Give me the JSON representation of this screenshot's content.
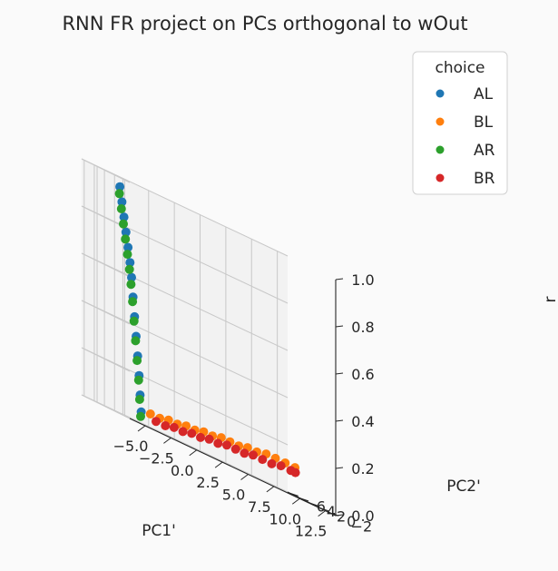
{
  "chart_data": {
    "type": "scatter",
    "projection": "3d",
    "title": "RNN FR project on PCs orthogonal to wOut",
    "xlabel": "PC1'",
    "ylabel": "PC2'",
    "zlabel": "r",
    "xlim": [
      -6.5,
      13.5
    ],
    "ylim": [
      -3.0,
      6.5
    ],
    "zlim": [
      0,
      1.0
    ],
    "x_ticks": [
      "−5.0",
      "−2.5",
      "0.0",
      "2.5",
      "5.0",
      "7.5",
      "10.0",
      "12.5"
    ],
    "y_ticks": [
      "−2",
      "0",
      "2",
      "4",
      "6"
    ],
    "z_ticks": [
      "0.0",
      "0.2",
      "0.4",
      "0.6",
      "0.8",
      "1.0"
    ],
    "grid": true,
    "legend": {
      "title": "choice",
      "position": "top-right",
      "entries": [
        {
          "label": "AL",
          "color": "#1f77b4"
        },
        {
          "label": "BL",
          "color": "#ff7f0e"
        },
        {
          "label": "AR",
          "color": "#2ca02c"
        },
        {
          "label": "BR",
          "color": "#d62728"
        }
      ]
    },
    "series": [
      {
        "name": "AL",
        "color": "#1f77b4",
        "x": [
          -5.0,
          -5.0,
          -5.0,
          -5.0,
          -5.0,
          -5.0,
          -5.0,
          -5.0,
          -5.0,
          -5.0,
          -5.0,
          -5.0,
          -5.0,
          -5.0
        ],
        "y": [
          -2.2,
          -2.0,
          -1.8,
          -1.5,
          -1.2,
          -0.9,
          -0.6,
          -0.3,
          0.0,
          0.4,
          0.8,
          1.2,
          1.6,
          2.0
        ],
        "z": [
          0.05,
          0.12,
          0.2,
          0.28,
          0.36,
          0.44,
          0.52,
          0.6,
          0.66,
          0.72,
          0.78,
          0.84,
          0.9,
          0.96
        ]
      },
      {
        "name": "BL",
        "color": "#ff7f0e",
        "x": [
          -4.0,
          -3.0,
          -2.0,
          -1.0,
          0.0,
          1.0,
          2.0,
          3.0,
          4.0,
          5.0,
          6.0,
          7.0,
          8.0,
          9.0,
          10.0,
          11.0,
          12.0
        ],
        "y": [
          -2.0,
          -1.8,
          -1.5,
          -1.2,
          -0.9,
          -0.6,
          -0.3,
          0.0,
          0.3,
          0.6,
          0.9,
          1.2,
          1.4,
          1.6,
          1.8,
          1.9,
          2.0
        ],
        "z": [
          0.06,
          0.06,
          0.07,
          0.07,
          0.08,
          0.08,
          0.09,
          0.09,
          0.1,
          0.1,
          0.1,
          0.11,
          0.11,
          0.12,
          0.12,
          0.12,
          0.12
        ]
      },
      {
        "name": "AR",
        "color": "#2ca02c",
        "x": [
          -5.1,
          -5.1,
          -5.1,
          -5.1,
          -5.1,
          -5.1,
          -5.1,
          -5.1,
          -5.1,
          -5.1,
          -5.1,
          -5.1,
          -5.1,
          -5.1
        ],
        "y": [
          -2.3,
          -2.1,
          -1.9,
          -1.6,
          -1.3,
          -1.0,
          -0.7,
          -0.4,
          -0.1,
          0.3,
          0.7,
          1.1,
          1.5,
          1.9
        ],
        "z": [
          0.03,
          0.1,
          0.18,
          0.26,
          0.34,
          0.42,
          0.5,
          0.57,
          0.63,
          0.69,
          0.75,
          0.81,
          0.87,
          0.93
        ]
      },
      {
        "name": "BR",
        "color": "#d62728",
        "x": [
          -3.5,
          -2.5,
          -1.5,
          -0.5,
          0.5,
          1.5,
          2.5,
          3.5,
          4.5,
          5.5,
          6.5,
          7.5,
          8.5,
          9.5,
          10.5,
          11.5,
          12.0
        ],
        "y": [
          -2.1,
          -1.9,
          -1.6,
          -1.3,
          -1.0,
          -0.7,
          -0.4,
          -0.1,
          0.2,
          0.5,
          0.8,
          1.1,
          1.3,
          1.5,
          1.7,
          1.8,
          1.9
        ],
        "z": [
          0.04,
          0.04,
          0.05,
          0.05,
          0.06,
          0.06,
          0.07,
          0.07,
          0.08,
          0.08,
          0.08,
          0.09,
          0.09,
          0.09,
          0.1,
          0.1,
          0.1
        ]
      }
    ]
  }
}
